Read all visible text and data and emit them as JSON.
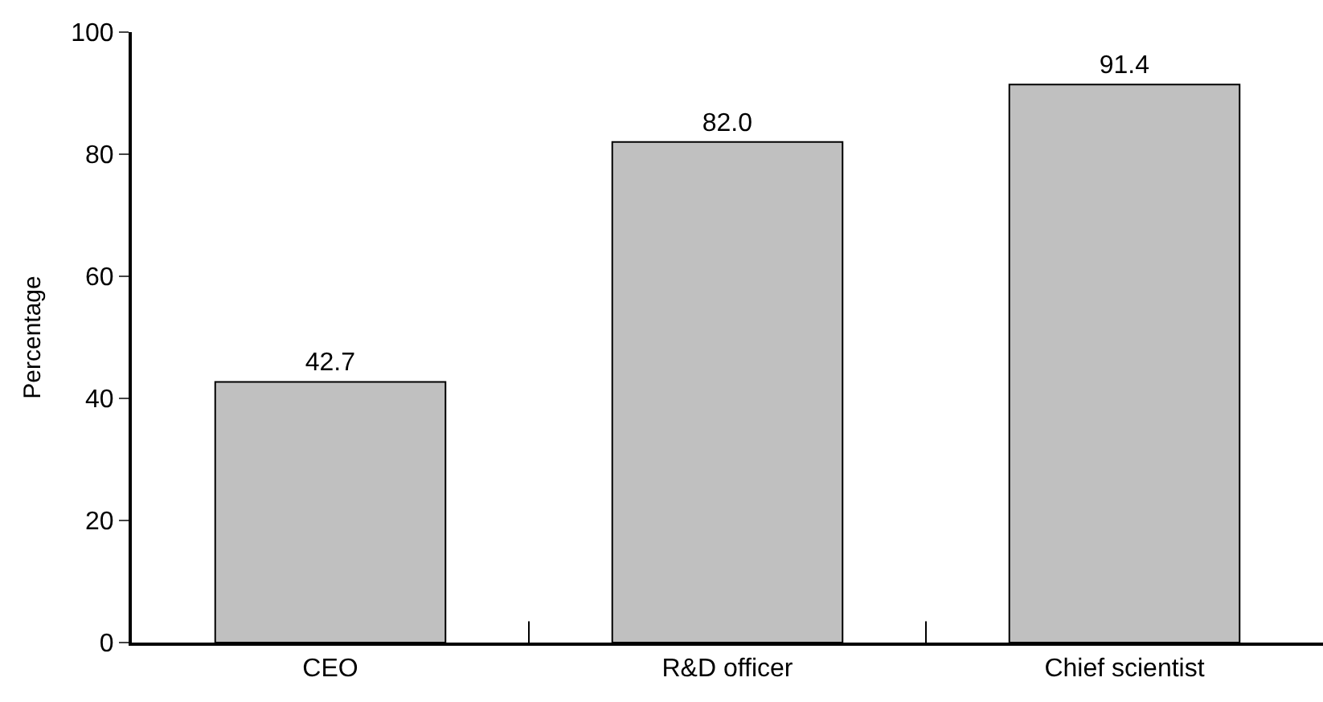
{
  "chart_data": {
    "type": "bar",
    "ylabel": "Percentage",
    "categories": [
      "CEO",
      "R&D officer",
      "Chief scientist"
    ],
    "values": [
      42.7,
      82.0,
      91.4
    ],
    "value_labels": [
      "42.7",
      "82.0",
      "91.4"
    ],
    "color": "#c0c0c0",
    "ylim": [
      0,
      100
    ],
    "yticks": [
      0,
      20,
      40,
      60,
      80,
      100
    ]
  }
}
